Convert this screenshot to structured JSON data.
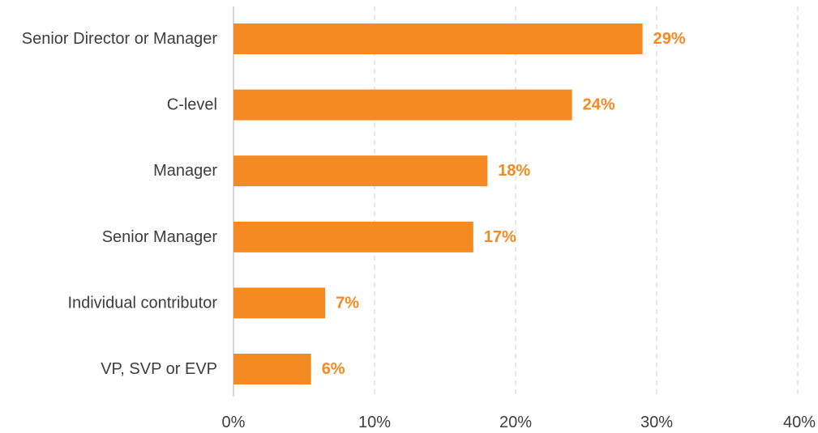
{
  "chart_data": {
    "type": "bar",
    "orientation": "horizontal",
    "title": "",
    "xlabel": "",
    "ylabel": "",
    "categories": [
      "Senior Director or Manager",
      "C-level",
      "Manager",
      "Senior Manager",
      "Individual contributor",
      "VP, SVP or EVP"
    ],
    "values": [
      29,
      24,
      18,
      17,
      6.5,
      5.5
    ],
    "value_labels": [
      "29%",
      "24%",
      "18%",
      "17%",
      "7%",
      "6%"
    ],
    "xlim": [
      0,
      40
    ],
    "x_ticks": [
      0,
      10,
      20,
      30,
      40
    ],
    "x_tick_labels": [
      "0%",
      "10%",
      "20%",
      "30%",
      "40%"
    ],
    "grid": "vertical-dashed",
    "legend": "none",
    "colors": {
      "bar": "#f58a23",
      "value_label": "#f58a23",
      "grid": "#d9d9d9",
      "axis": "#cccccc"
    }
  }
}
